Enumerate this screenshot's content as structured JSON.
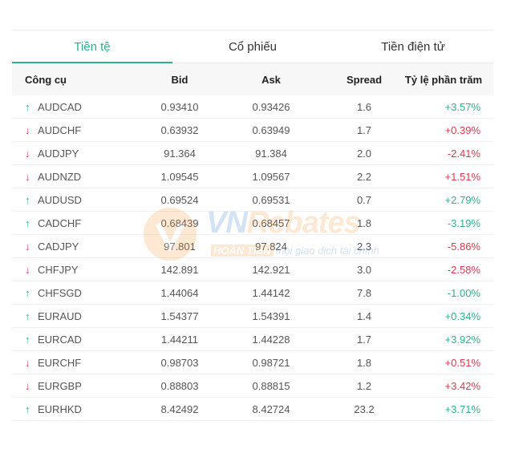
{
  "tabs": [
    {
      "label": "Tiền tệ",
      "active": true
    },
    {
      "label": "Cổ phiếu",
      "active": false
    },
    {
      "label": "Tiền điện tử",
      "active": false
    }
  ],
  "columns": {
    "instrument": "Công cụ",
    "bid": "Bid",
    "ask": "Ask",
    "spread": "Spread",
    "percent": "Tỷ lệ phần trăm"
  },
  "rows": [
    {
      "symbol": "AUDCAD",
      "direction": "up",
      "bid": "0.93410",
      "ask": "0.93426",
      "spread": "1.6",
      "change": "+3.57%",
      "change_color": "green"
    },
    {
      "symbol": "AUDCHF",
      "direction": "down",
      "bid": "0.63932",
      "ask": "0.63949",
      "spread": "1.7",
      "change": "+0.39%",
      "change_color": "red"
    },
    {
      "symbol": "AUDJPY",
      "direction": "down",
      "bid": "91.364",
      "ask": "91.384",
      "spread": "2.0",
      "change": "-2.41%",
      "change_color": "red"
    },
    {
      "symbol": "AUDNZD",
      "direction": "down",
      "bid": "1.09545",
      "ask": "1.09567",
      "spread": "2.2",
      "change": "+1.51%",
      "change_color": "red"
    },
    {
      "symbol": "AUDUSD",
      "direction": "up",
      "bid": "0.69524",
      "ask": "0.69531",
      "spread": "0.7",
      "change": "+2.79%",
      "change_color": "green"
    },
    {
      "symbol": "CADCHF",
      "direction": "up",
      "bid": "0.68439",
      "ask": "0.68457",
      "spread": "1.8",
      "change": "-3.19%",
      "change_color": "green"
    },
    {
      "symbol": "CADJPY",
      "direction": "down",
      "bid": "97.801",
      "ask": "97.824",
      "spread": "2.3",
      "change": "-5.86%",
      "change_color": "red"
    },
    {
      "symbol": "CHFJPY",
      "direction": "down",
      "bid": "142.891",
      "ask": "142.921",
      "spread": "3.0",
      "change": "-2.58%",
      "change_color": "red"
    },
    {
      "symbol": "CHFSGD",
      "direction": "up",
      "bid": "1.44064",
      "ask": "1.44142",
      "spread": "7.8",
      "change": "-1.00%",
      "change_color": "green"
    },
    {
      "symbol": "EURAUD",
      "direction": "up",
      "bid": "1.54377",
      "ask": "1.54391",
      "spread": "1.4",
      "change": "+0.34%",
      "change_color": "green"
    },
    {
      "symbol": "EURCAD",
      "direction": "up",
      "bid": "1.44211",
      "ask": "1.44228",
      "spread": "1.7",
      "change": "+3.92%",
      "change_color": "green"
    },
    {
      "symbol": "EURCHF",
      "direction": "down",
      "bid": "0.98703",
      "ask": "0.98721",
      "spread": "1.8",
      "change": "+0.51%",
      "change_color": "red"
    },
    {
      "symbol": "EURGBP",
      "direction": "down",
      "bid": "0.88803",
      "ask": "0.88815",
      "spread": "1.2",
      "change": "+3.42%",
      "change_color": "red"
    },
    {
      "symbol": "EURHKD",
      "direction": "up",
      "bid": "8.42492",
      "ask": "8.42724",
      "spread": "23.2",
      "change": "+3.71%",
      "change_color": "green"
    }
  ],
  "watermark": {
    "brand_vn": "VN",
    "brand_rest": "Rebates",
    "badge": "HOÀN TIỀN",
    "tagline": "mọi giao dịch tài chính"
  },
  "colors": {
    "accent": "#2bb390",
    "up": "#2bb390",
    "down": "#e0384a",
    "header_bg": "#f7f7f8"
  }
}
